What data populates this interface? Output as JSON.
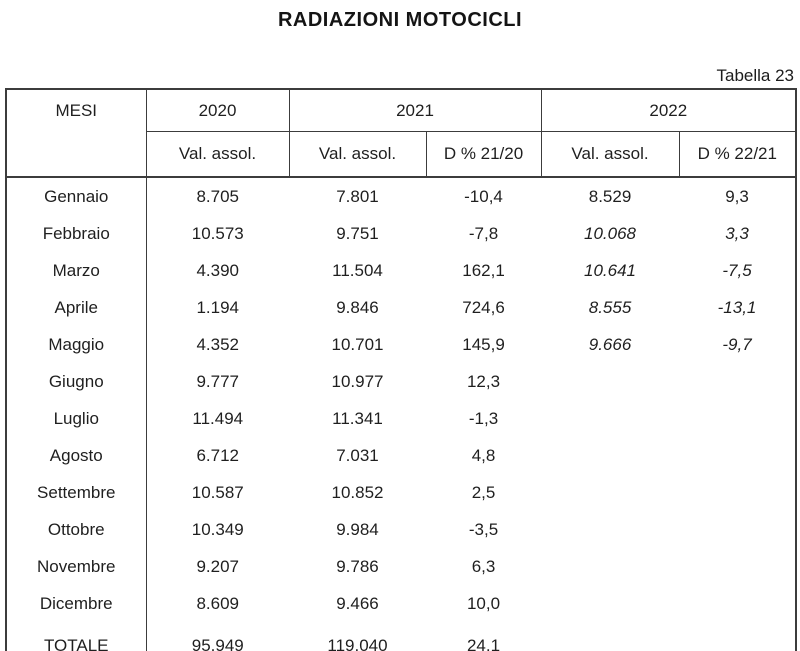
{
  "page": {
    "title": "RADIAZIONI MOTOCICLI",
    "table_caption": "Tabella 23"
  },
  "table": {
    "header": {
      "mesi": "MESI",
      "y2020": "2020",
      "y2021": "2021",
      "y2022": "2022",
      "val_assol_2020": "Val. assol.",
      "val_assol_2021": "Val. assol.",
      "delta_2120": "D % 21/20",
      "val_assol_2022": "Val. assol.",
      "delta_2221": "D % 22/21"
    },
    "rows": [
      {
        "month": "Gennaio",
        "v2020": "8.705",
        "v2021": "7.801",
        "d2120": "-10,4",
        "v2022": "8.529",
        "d2221": "9,3",
        "v2022_style": "normal"
      },
      {
        "month": "Febbraio",
        "v2020": "10.573",
        "v2021": "9.751",
        "d2120": "-7,8",
        "v2022": "10.068",
        "d2221": "3,3",
        "v2022_style": "italic"
      },
      {
        "month": "Marzo",
        "v2020": "4.390",
        "v2021": "11.504",
        "d2120": "162,1",
        "v2022": "10.641",
        "d2221": "-7,5",
        "v2022_style": "italic"
      },
      {
        "month": "Aprile",
        "v2020": "1.194",
        "v2021": "9.846",
        "d2120": "724,6",
        "v2022": "8.555",
        "d2221": "-13,1",
        "v2022_style": "italic"
      },
      {
        "month": "Maggio",
        "v2020": "4.352",
        "v2021": "10.701",
        "d2120": "145,9",
        "v2022": "9.666",
        "d2221": "-9,7",
        "v2022_style": "italic"
      },
      {
        "month": "Giugno",
        "v2020": "9.777",
        "v2021": "10.977",
        "d2120": "12,3",
        "v2022": "",
        "d2221": "",
        "v2022_style": "normal"
      },
      {
        "month": "Luglio",
        "v2020": "11.494",
        "v2021": "11.341",
        "d2120": "-1,3",
        "v2022": "",
        "d2221": "",
        "v2022_style": "normal"
      },
      {
        "month": "Agosto",
        "v2020": "6.712",
        "v2021": "7.031",
        "d2120": "4,8",
        "v2022": "",
        "d2221": "",
        "v2022_style": "normal"
      },
      {
        "month": "Settembre",
        "v2020": "10.587",
        "v2021": "10.852",
        "d2120": "2,5",
        "v2022": "",
        "d2221": "",
        "v2022_style": "normal"
      },
      {
        "month": "Ottobre",
        "v2020": "10.349",
        "v2021": "9.984",
        "d2120": "-3,5",
        "v2022": "",
        "d2221": "",
        "v2022_style": "normal"
      },
      {
        "month": "Novembre",
        "v2020": "9.207",
        "v2021": "9.786",
        "d2120": "6,3",
        "v2022": "",
        "d2221": "",
        "v2022_style": "normal"
      },
      {
        "month": "Dicembre",
        "v2020": "8.609",
        "v2021": "9.466",
        "d2120": "10,0",
        "v2022": "",
        "d2221": "",
        "v2022_style": "normal"
      }
    ],
    "total": {
      "month": "TOTALE",
      "v2020": "95.949",
      "v2021": "119.040",
      "d2120": "24,1",
      "v2022": "",
      "d2221": ""
    }
  }
}
